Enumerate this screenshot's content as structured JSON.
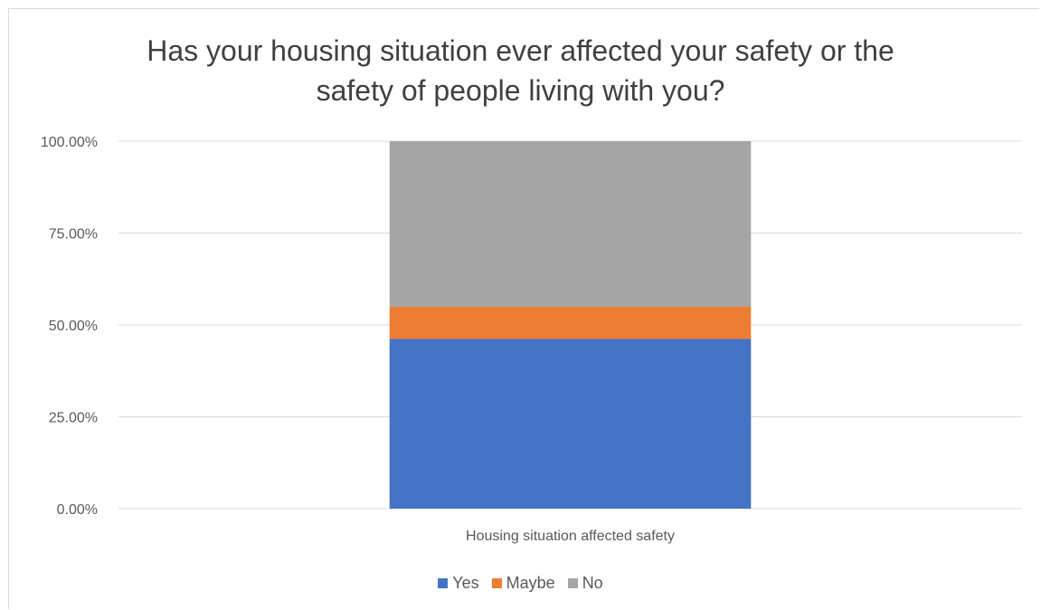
{
  "chart_data": {
    "type": "bar",
    "stacked": true,
    "title_lines": [
      "Has your housing situation ever affected your safety or the",
      "safety of people living with you?"
    ],
    "categories": [
      "Housing situation affected safety"
    ],
    "series": [
      {
        "name": "Yes",
        "values": [
          46.2
        ],
        "color": "#4472c4"
      },
      {
        "name": "Maybe",
        "values": [
          8.8
        ],
        "color": "#ed7d31"
      },
      {
        "name": "No",
        "values": [
          45.0
        ],
        "color": "#a5a5a5"
      }
    ],
    "y_ticks": [
      "0.00%",
      "25.00%",
      "50.00%",
      "75.00%",
      "100.00%"
    ],
    "ylim": [
      0,
      100
    ],
    "grid": true,
    "legend_position": "bottom"
  }
}
